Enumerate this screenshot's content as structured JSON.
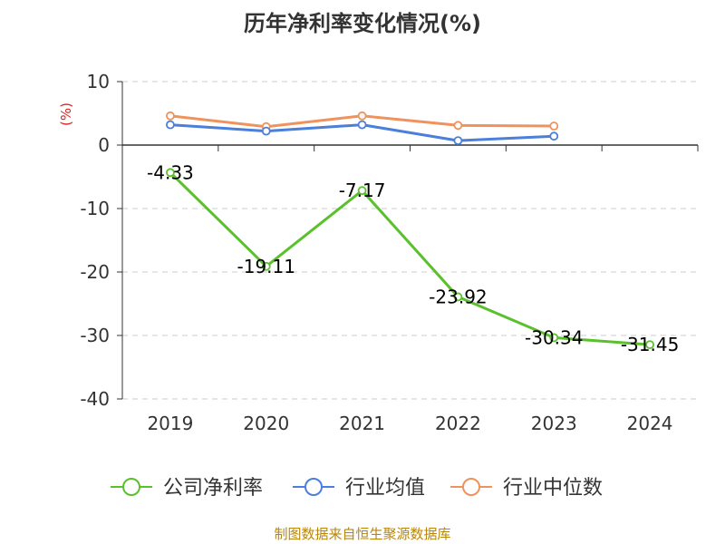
{
  "chart_data": {
    "type": "line",
    "title": "历年净利率变化情况(%)",
    "ylabel": "(%)",
    "xlabel": "",
    "categories": [
      "2019",
      "2020",
      "2021",
      "2022",
      "2023",
      "2024"
    ],
    "ylim": [
      -40,
      10
    ],
    "yticks": [
      "10",
      "0",
      "-10",
      "-20",
      "-30",
      "-40"
    ],
    "grid": true,
    "legend_position": "bottom",
    "series": [
      {
        "name": "公司净利率",
        "color": "#5ac12c",
        "values": [
          -4.33,
          -19.11,
          -7.17,
          -23.92,
          -30.34,
          -31.45
        ],
        "labels": [
          "-4.33",
          "-19.11",
          "-7.17",
          "-23.92",
          "-30.34",
          "-31.45"
        ]
      },
      {
        "name": "行业均值",
        "color": "#4a7fdb",
        "values": [
          3.2,
          2.2,
          3.2,
          0.7,
          1.4,
          null
        ]
      },
      {
        "name": "行业中位数",
        "color": "#f0925c",
        "values": [
          4.6,
          2.9,
          4.6,
          3.1,
          3.0,
          null
        ]
      }
    ]
  },
  "source_note": "制图数据来自恒生聚源数据库",
  "ylabel_color": "#e02020"
}
